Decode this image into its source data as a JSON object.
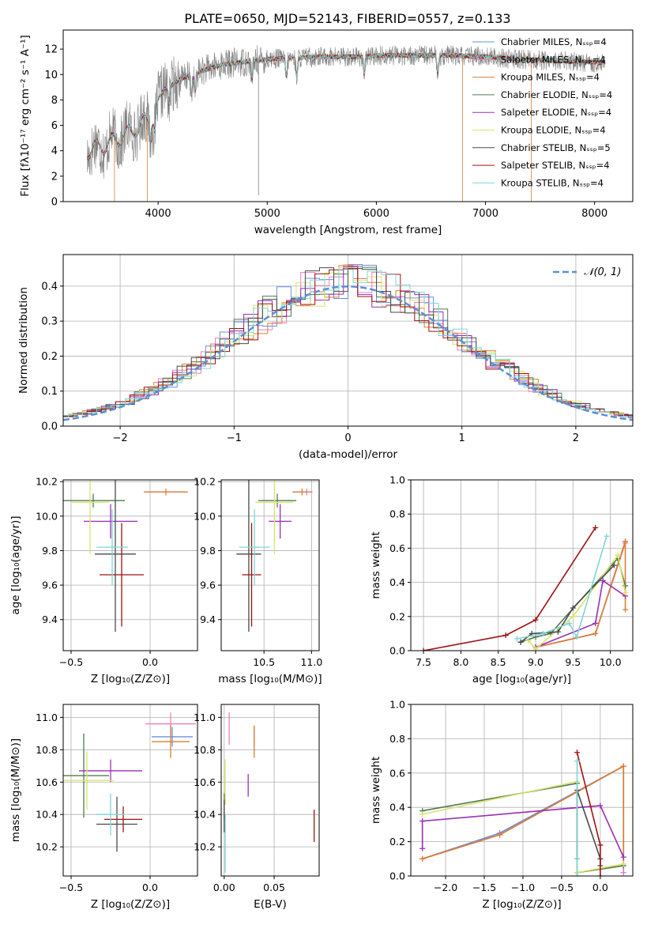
{
  "figure": {
    "title": "PLATE=0650, MJD=52143, FIBERID=0557, z=0.133"
  },
  "colors": {
    "chabrier_miles": "#6a8fdc",
    "salpeter_miles": "#e57fc4",
    "kroupa_miles": "#d98030",
    "chabrier_elodie": "#4f7a52",
    "salpeter_elodie": "#9a2eb4",
    "kroupa_elodie": "#d8e36a",
    "chabrier_stelib": "#4a4a4a",
    "salpeter_stelib": "#a01010",
    "kroupa_stelib": "#7fd6d6",
    "data": "#808080",
    "gauss": "#5b8fd9",
    "grid": "#b0b0b0"
  },
  "chart_data": [
    {
      "id": "spectrum",
      "type": "line",
      "xlabel": "wavelength [Angstrom, rest frame]",
      "ylabel": "Flux [fλ10⁻¹⁷ erg cm⁻² s⁻¹ A⁻¹]",
      "xlim": [
        3130,
        8350
      ],
      "ylim": [
        0,
        13.5
      ],
      "xticks": [
        4000,
        5000,
        6000,
        7000,
        8000
      ],
      "yticks": [
        0,
        2,
        4,
        6,
        8,
        10,
        12
      ],
      "grid": false,
      "legend": "right",
      "spectrum_shape": {
        "x": [
          3350,
          3500,
          3650,
          3800,
          3950,
          4050,
          4200,
          4400,
          4600,
          4800,
          5000,
          5200,
          5500,
          5800,
          6100,
          6400,
          6700,
          7000,
          7300,
          7600,
          7900,
          8100
        ],
        "y": [
          4.6,
          5.0,
          5.6,
          6.4,
          7.4,
          8.8,
          9.6,
          10.3,
          10.8,
          11.0,
          11.2,
          11.3,
          11.4,
          11.4,
          11.5,
          11.5,
          11.5,
          11.4,
          11.2,
          11.1,
          11.0,
          10.9
        ]
      },
      "series": [
        {
          "name": "Chabrier MILES, Nₛₛₚ=4",
          "color_key": "chabrier_miles"
        },
        {
          "name": "Salpeter MILES, Nₛₛₚ=4",
          "color_key": "salpeter_miles"
        },
        {
          "name": "Kroupa MILES, Nₛₛₚ=4",
          "color_key": "kroupa_miles"
        },
        {
          "name": "Chabrier ELODIE, Nₛₛₚ=4",
          "color_key": "chabrier_elodie"
        },
        {
          "name": "Salpeter ELODIE, Nₛₛₚ=4",
          "color_key": "salpeter_elodie"
        },
        {
          "name": "Kroupa ELODIE, Nₛₛₚ=4",
          "color_key": "kroupa_elodie"
        },
        {
          "name": "Chabrier STELIB, Nₛₛₚ=5",
          "color_key": "chabrier_stelib"
        },
        {
          "name": "Salpeter STELIB, Nₛₛₚ=4",
          "color_key": "salpeter_stelib"
        },
        {
          "name": "Kroupa STELIB, Nₛₛₚ=4",
          "color_key": "kroupa_stelib"
        }
      ]
    },
    {
      "id": "residuals",
      "type": "histogram",
      "xlabel": "(data-model)/error",
      "ylabel": "Normed distribution",
      "xlim": [
        -2.5,
        2.5
      ],
      "ylim": [
        0,
        0.49
      ],
      "xticks": [
        -2,
        -1,
        0,
        1,
        2
      ],
      "xticklabels": [
        "−2",
        "−1",
        "0",
        "1",
        "2"
      ],
      "yticks": [
        0.0,
        0.1,
        0.2,
        0.3,
        0.4
      ],
      "grid": true,
      "legend": "top-right",
      "legend_label": "𝒩(0, 1)",
      "bin_width": 0.125
    },
    {
      "id": "age_vs_z",
      "type": "errorbar",
      "xlabel": "Z [log₁₀(Z/Z⊙)]",
      "ylabel": "age  [log₁₀(age/yr)]",
      "xlim": [
        -0.55,
        0.3
      ],
      "ylim": [
        9.22,
        10.21
      ],
      "xticks": [
        -0.5,
        0.0
      ],
      "xticklabels": [
        "−0.5",
        "0.0"
      ],
      "yticks": [
        9.4,
        9.6,
        9.8,
        10.0,
        10.2
      ],
      "grid": true,
      "points": [
        {
          "key": "chabrier_miles",
          "x": 0.1,
          "xerr": 0.13,
          "y": 10.14,
          "yerr": 0.0
        },
        {
          "key": "salpeter_miles",
          "x": 0.11,
          "xerr": 0.12,
          "y": 10.14,
          "yerr": 0.0
        },
        {
          "key": "kroupa_miles",
          "x": 0.1,
          "xerr": 0.14,
          "y": 10.14,
          "yerr": 0.02
        },
        {
          "key": "chabrier_elodie",
          "x": -0.36,
          "xerr": 0.2,
          "y": 10.09,
          "yerr": 0.04
        },
        {
          "key": "salpeter_elodie",
          "x": -0.25,
          "xerr": 0.17,
          "y": 9.97,
          "yerr": 0.1
        },
        {
          "key": "kroupa_elodie",
          "x": -0.38,
          "xerr": 0.12,
          "y": 10.08,
          "yerr": 0.3
        },
        {
          "key": "chabrier_stelib",
          "x": -0.22,
          "xerr": 0.13,
          "y": 9.78,
          "yerr": 0.45
        },
        {
          "key": "salpeter_stelib",
          "x": -0.18,
          "xerr": 0.14,
          "y": 9.66,
          "yerr": 0.3
        },
        {
          "key": "kroupa_stelib",
          "x": -0.24,
          "xerr": 0.1,
          "y": 9.82,
          "yerr": 0.22
        }
      ]
    },
    {
      "id": "age_vs_mass",
      "type": "errorbar",
      "xlabel": "mass [log₁₀(M/M⊙)]",
      "ylabel": "",
      "xlim": [
        10.05,
        11.08
      ],
      "ylim": [
        9.22,
        10.21
      ],
      "xticks": [
        10.5,
        11.0
      ],
      "xticklabels": [
        "10.5",
        "11.0"
      ],
      "yticks": [
        9.4,
        9.6,
        9.8,
        10.0,
        10.2
      ],
      "grid": true,
      "points": [
        {
          "key": "chabrier_miles",
          "x": 10.87,
          "xerr": 0.07,
          "y": 10.14,
          "yerr": 0.0
        },
        {
          "key": "salpeter_miles",
          "x": 10.95,
          "xerr": 0.06,
          "y": 10.14,
          "yerr": 0.02
        },
        {
          "key": "kroupa_miles",
          "x": 10.9,
          "xerr": 0.1,
          "y": 10.14,
          "yerr": 0.02
        },
        {
          "key": "chabrier_elodie",
          "x": 10.64,
          "xerr": 0.2,
          "y": 10.09,
          "yerr": 0.04
        },
        {
          "key": "salpeter_elodie",
          "x": 10.67,
          "xerr": 0.12,
          "y": 9.97,
          "yerr": 0.1
        },
        {
          "key": "kroupa_elodie",
          "x": 10.61,
          "xerr": 0.2,
          "y": 10.08,
          "yerr": 0.3
        },
        {
          "key": "chabrier_stelib",
          "x": 10.34,
          "xerr": 0.13,
          "y": 9.78,
          "yerr": 0.45
        },
        {
          "key": "salpeter_stelib",
          "x": 10.37,
          "xerr": 0.1,
          "y": 9.66,
          "yerr": 0.3
        },
        {
          "key": "kroupa_stelib",
          "x": 10.4,
          "xerr": 0.16,
          "y": 9.82,
          "yerr": 0.22
        }
      ]
    },
    {
      "id": "mw_vs_age",
      "type": "line",
      "xlabel": "age  [log₁₀(age/yr)]",
      "ylabel": "mass weight",
      "xlim": [
        7.33,
        10.3
      ],
      "ylim": [
        0,
        1.0
      ],
      "xticks": [
        7.5,
        8.0,
        8.5,
        9.0,
        9.5,
        10.0
      ],
      "yticks": [
        0.0,
        0.2,
        0.4,
        0.6,
        0.8,
        1.0
      ],
      "grid": true,
      "series": [
        {
          "key": "chabrier_miles",
          "x": [
            9.0,
            9.8,
            10.2
          ],
          "y": [
            0.02,
            0.1,
            0.64
          ]
        },
        {
          "key": "salpeter_miles",
          "x": [
            9.0,
            9.8,
            10.2
          ],
          "y": [
            0.02,
            0.1,
            0.63
          ]
        },
        {
          "key": "kroupa_miles",
          "x": [
            9.0,
            9.8,
            10.2,
            10.2
          ],
          "y": [
            0.02,
            0.1,
            0.64,
            0.24
          ]
        },
        {
          "key": "chabrier_elodie",
          "x": [
            8.8,
            9.0,
            9.2,
            10.1,
            10.2
          ],
          "y": [
            0.05,
            0.08,
            0.1,
            0.54,
            0.38
          ]
        },
        {
          "key": "salpeter_elodie",
          "x": [
            9.0,
            9.8,
            9.9,
            10.2
          ],
          "y": [
            0.02,
            0.16,
            0.41,
            0.32
          ]
        },
        {
          "key": "kroupa_elodie",
          "x": [
            8.9,
            9.0,
            9.5,
            10.1,
            10.2
          ],
          "y": [
            0.06,
            0.01,
            0.2,
            0.56,
            0.34
          ]
        },
        {
          "key": "chabrier_stelib",
          "x": [
            8.8,
            8.95,
            9.3,
            9.5,
            10.05
          ],
          "y": [
            0.05,
            0.1,
            0.11,
            0.25,
            0.5
          ]
        },
        {
          "key": "salpeter_stelib",
          "x": [
            7.5,
            8.6,
            9.0,
            9.8
          ],
          "y": [
            0.0,
            0.09,
            0.18,
            0.72
          ]
        },
        {
          "key": "kroupa_stelib",
          "x": [
            8.75,
            9.1,
            9.45,
            9.55,
            9.95
          ],
          "y": [
            0.07,
            0.1,
            0.16,
            0.08,
            0.67
          ]
        }
      ]
    },
    {
      "id": "mass_vs_z",
      "type": "errorbar",
      "xlabel": "Z [log₁₀(Z/Z⊙)]",
      "ylabel": "mass [log₁₀(M/M⊙)]",
      "xlim": [
        -0.55,
        0.3
      ],
      "ylim": [
        10.02,
        11.08
      ],
      "xticks": [
        -0.5,
        0.0
      ],
      "xticklabels": [
        "−0.5",
        "0.0"
      ],
      "yticks": [
        10.2,
        10.4,
        10.6,
        10.8,
        11.0
      ],
      "grid": true,
      "points": [
        {
          "key": "chabrier_miles",
          "x": 0.14,
          "xerr": 0.13,
          "y": 10.88,
          "yerr": 0.06
        },
        {
          "key": "salpeter_miles",
          "x": 0.13,
          "xerr": 0.16,
          "y": 10.96,
          "yerr": 0.07
        },
        {
          "key": "kroupa_miles",
          "x": 0.13,
          "xerr": 0.12,
          "y": 10.85,
          "yerr": 0.1
        },
        {
          "key": "chabrier_elodie",
          "x": -0.42,
          "xerr": 0.16,
          "y": 10.64,
          "yerr": 0.26
        },
        {
          "key": "salpeter_elodie",
          "x": -0.25,
          "xerr": 0.2,
          "y": 10.67,
          "yerr": 0.07
        },
        {
          "key": "kroupa_elodie",
          "x": -0.4,
          "xerr": 0.17,
          "y": 10.61,
          "yerr": 0.18
        },
        {
          "key": "chabrier_stelib",
          "x": -0.21,
          "xerr": 0.13,
          "y": 10.34,
          "yerr": 0.17
        },
        {
          "key": "salpeter_stelib",
          "x": -0.17,
          "xerr": 0.12,
          "y": 10.37,
          "yerr": 0.08
        },
        {
          "key": "kroupa_stelib",
          "x": -0.25,
          "xerr": 0.09,
          "y": 10.4,
          "yerr": 0.13
        }
      ]
    },
    {
      "id": "mass_vs_ebv",
      "type": "errorbar",
      "xlabel": "E(B-V)",
      "ylabel": "",
      "xlim": [
        -0.003,
        0.095
      ],
      "ylim": [
        10.02,
        11.08
      ],
      "xticks": [
        0.0,
        0.05
      ],
      "xticklabels": [
        "0.00",
        "0.05"
      ],
      "yticks": [
        10.2,
        10.4,
        10.6,
        10.8,
        11.0
      ],
      "grid": true,
      "points": [
        {
          "key": "chabrier_miles",
          "x": 0.03,
          "xerr": 0,
          "y": 10.88,
          "yerr": 0.06
        },
        {
          "key": "salpeter_miles",
          "x": 0.005,
          "xerr": 0,
          "y": 10.93,
          "yerr": 0.1
        },
        {
          "key": "kroupa_miles",
          "x": 0.03,
          "xerr": 0,
          "y": 10.85,
          "yerr": 0.1
        },
        {
          "key": "chabrier_elodie",
          "x": 0.0,
          "xerr": 0,
          "y": 10.45,
          "yerr": 0.08
        },
        {
          "key": "salpeter_elodie",
          "x": 0.024,
          "xerr": 0,
          "y": 10.58,
          "yerr": 0.07
        },
        {
          "key": "kroupa_elodie",
          "x": 0.001,
          "xerr": 0,
          "y": 10.6,
          "yerr": 0.14
        },
        {
          "key": "chabrier_stelib",
          "x": 0.0,
          "xerr": 0,
          "y": 10.39,
          "yerr": 0.1
        },
        {
          "key": "salpeter_stelib",
          "x": 0.09,
          "xerr": 0,
          "y": 10.33,
          "yerr": 0.1
        },
        {
          "key": "kroupa_stelib",
          "x": 0.001,
          "xerr": 0,
          "y": 10.22,
          "yerr": 0.18
        }
      ]
    },
    {
      "id": "mw_vs_z",
      "type": "line",
      "xlabel": "Z [log₁₀(Z/Z⊙)]",
      "ylabel": "mass weight",
      "xlim": [
        -2.45,
        0.42
      ],
      "ylim": [
        0,
        1.0
      ],
      "xticks": [
        -2.0,
        -1.5,
        -1.0,
        -0.5,
        0.0
      ],
      "xticklabels": [
        "−2.0",
        "−1.5",
        "−1.0",
        "−0.5",
        "0.0"
      ],
      "yticks": [
        0.0,
        0.2,
        0.4,
        0.6,
        0.8,
        1.0
      ],
      "grid": true,
      "series": [
        {
          "key": "chabrier_miles",
          "x": [
            -2.3,
            -1.3,
            0.3,
            0.3
          ],
          "y": [
            0.1,
            0.25,
            0.64,
            0.02
          ]
        },
        {
          "key": "salpeter_miles",
          "x": [
            -2.3,
            -1.3,
            0.3,
            0.3
          ],
          "y": [
            0.1,
            0.24,
            0.64,
            0.02
          ]
        },
        {
          "key": "kroupa_miles",
          "x": [
            -2.3,
            -1.3,
            0.3,
            0.3,
            -0.3
          ],
          "y": [
            0.1,
            0.24,
            0.64,
            0.06,
            0.02
          ]
        },
        {
          "key": "chabrier_elodie",
          "x": [
            -2.3,
            -0.3,
            -0.3,
            0.3
          ],
          "y": [
            0.38,
            0.54,
            0.02,
            0.06
          ]
        },
        {
          "key": "salpeter_elodie",
          "x": [
            -2.3,
            -2.3,
            0.0,
            0.3
          ],
          "y": [
            0.16,
            0.32,
            0.41,
            0.11
          ]
        },
        {
          "key": "kroupa_elodie",
          "x": [
            -2.3,
            -0.3,
            -0.3,
            0.3
          ],
          "y": [
            0.36,
            0.55,
            0.02,
            0.07
          ]
        },
        {
          "key": "chabrier_stelib",
          "x": [
            -0.3,
            -0.3,
            0.0,
            0.0
          ],
          "y": [
            0.1,
            0.5,
            0.1,
            0.06
          ]
        },
        {
          "key": "salpeter_stelib",
          "x": [
            -0.3,
            0.0,
            0.0
          ],
          "y": [
            0.72,
            0.18,
            0.0
          ]
        },
        {
          "key": "kroupa_stelib",
          "x": [
            -0.3,
            -0.3,
            -0.3
          ],
          "y": [
            0.67,
            0.1,
            0.0
          ]
        }
      ]
    }
  ]
}
